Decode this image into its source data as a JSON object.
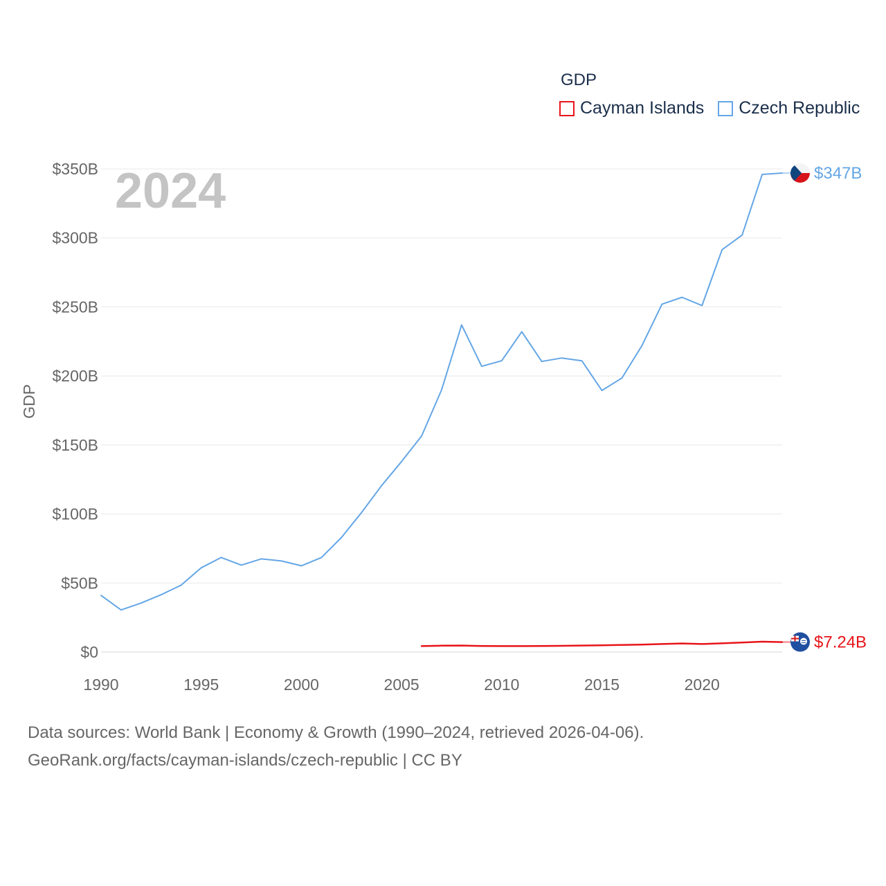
{
  "legend": {
    "title": "GDP",
    "items": [
      {
        "label": "Cayman Islands",
        "color": "#e8141a"
      },
      {
        "label": "Czech Republic",
        "color": "#64a6e6"
      }
    ]
  },
  "footer": {
    "line1": "Data sources: World Bank | Economy & Growth (1990–2024, retrieved 2026-04-06).",
    "line2": "GeoRank.org/facts/cayman-islands/czech-republic | CC BY"
  },
  "chart_data": {
    "type": "line",
    "title": "GDP",
    "year_label": "2024",
    "xlabel": "",
    "ylabel": "GDP",
    "xlim": [
      1990,
      2024
    ],
    "ylim": [
      0,
      350
    ],
    "x_ticks": [
      1990,
      1995,
      2000,
      2005,
      2010,
      2015,
      2020
    ],
    "y_ticks": [
      0,
      50,
      100,
      150,
      200,
      250,
      300,
      350
    ],
    "y_tick_labels": [
      "$0",
      "$50B",
      "$100B",
      "$150B",
      "$200B",
      "$250B",
      "$300B",
      "$350B"
    ],
    "grid": true,
    "legend_position": "top-right",
    "series": [
      {
        "name": "Czech Republic",
        "color": "#64a6e6",
        "end_label": "$347B",
        "x": [
          1990,
          1991,
          1992,
          1993,
          1994,
          1995,
          1996,
          1997,
          1998,
          1999,
          2000,
          2001,
          2002,
          2003,
          2004,
          2005,
          2006,
          2007,
          2008,
          2009,
          2010,
          2011,
          2012,
          2013,
          2014,
          2015,
          2016,
          2017,
          2018,
          2019,
          2020,
          2021,
          2022,
          2023,
          2024
        ],
        "values": [
          41,
          30.5,
          35.5,
          41.5,
          48.5,
          61,
          68.5,
          63,
          67.5,
          66,
          62.5,
          68.5,
          83,
          101,
          120.5,
          138,
          156.5,
          190,
          237,
          207,
          211,
          232,
          210.5,
          213,
          211,
          189.5,
          198.5,
          222,
          252,
          257,
          251,
          291.5,
          302,
          346,
          347
        ]
      },
      {
        "name": "Cayman Islands",
        "color": "#e8141a",
        "end_label": "$7.24B",
        "x": [
          2006,
          2007,
          2008,
          2009,
          2010,
          2011,
          2012,
          2013,
          2014,
          2015,
          2016,
          2017,
          2018,
          2019,
          2020,
          2021,
          2022,
          2023,
          2024
        ],
        "values": [
          4.3,
          4.6,
          4.7,
          4.4,
          4.3,
          4.3,
          4.4,
          4.5,
          4.7,
          4.9,
          5.1,
          5.4,
          5.8,
          6.2,
          5.8,
          6.3,
          6.9,
          7.5,
          7.24
        ]
      }
    ]
  }
}
